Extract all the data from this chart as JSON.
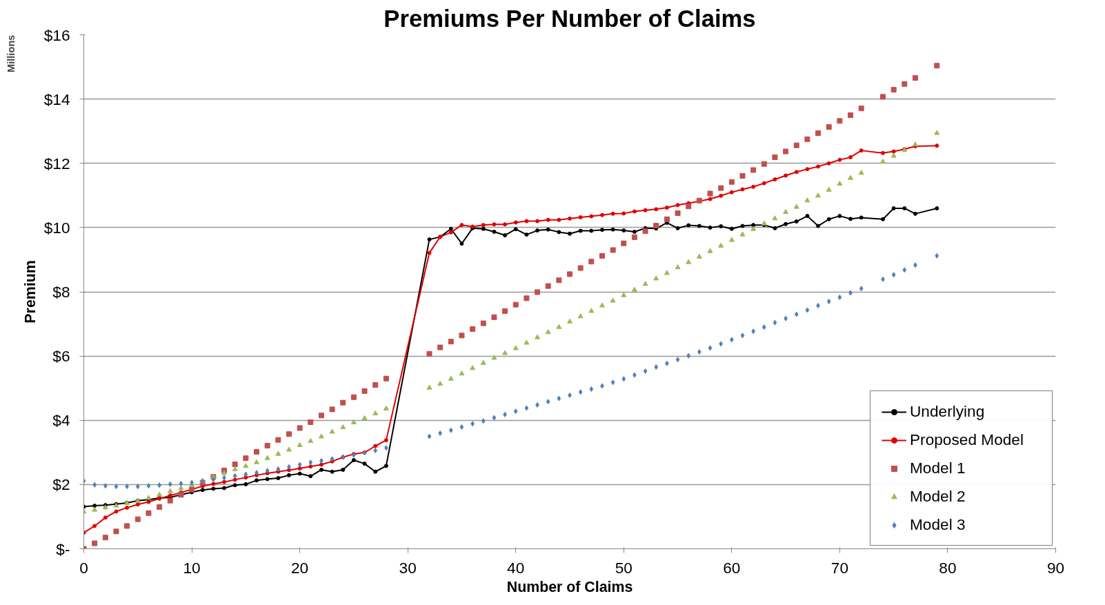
{
  "chart_data": {
    "type": "line",
    "title": "Premiums Per Number of Claims",
    "xlabel": "Number of Claims",
    "ylabel": "Premium",
    "annotations": [
      "Millions"
    ],
    "x": [
      0,
      1,
      2,
      3,
      4,
      5,
      6,
      7,
      8,
      9,
      10,
      11,
      12,
      13,
      14,
      15,
      16,
      17,
      18,
      19,
      20,
      21,
      22,
      23,
      24,
      25,
      26,
      27,
      28,
      32,
      33,
      34,
      35,
      36,
      37,
      38,
      39,
      40,
      41,
      42,
      43,
      44,
      45,
      46,
      47,
      48,
      49,
      50,
      51,
      52,
      53,
      54,
      55,
      56,
      57,
      58,
      59,
      60,
      61,
      62,
      63,
      64,
      65,
      66,
      67,
      68,
      69,
      70,
      71,
      72,
      74,
      75,
      76,
      77,
      79
    ],
    "xlim": [
      0,
      90
    ],
    "xticks": [
      0,
      10,
      20,
      30,
      40,
      50,
      60,
      70,
      80,
      90
    ],
    "ylim": [
      0,
      16
    ],
    "yticks": [
      {
        "value": 0,
        "label": "$-"
      },
      {
        "value": 2,
        "label": "$2"
      },
      {
        "value": 4,
        "label": "$4"
      },
      {
        "value": 6,
        "label": "$6"
      },
      {
        "value": 8,
        "label": "$8"
      },
      {
        "value": 10,
        "label": "$10"
      },
      {
        "value": 12,
        "label": "$12"
      },
      {
        "value": 14,
        "label": "$14"
      },
      {
        "value": 16,
        "label": "$16"
      }
    ],
    "grid": "y",
    "legend": "bottom right",
    "series": [
      {
        "name": "Underlying",
        "marker": "circle",
        "color": "#000000",
        "values": [
          1.31,
          1.34,
          1.36,
          1.39,
          1.43,
          1.5,
          1.53,
          1.58,
          1.6,
          1.68,
          1.76,
          1.83,
          1.87,
          1.89,
          1.98,
          2.01,
          2.13,
          2.17,
          2.2,
          2.29,
          2.34,
          2.26,
          2.46,
          2.4,
          2.46,
          2.76,
          2.65,
          2.4,
          2.58,
          9.63,
          9.71,
          9.96,
          9.5,
          9.98,
          9.96,
          9.87,
          9.76,
          9.95,
          9.78,
          9.91,
          9.94,
          9.86,
          9.81,
          9.9,
          9.9,
          9.93,
          9.94,
          9.91,
          9.87,
          9.98,
          9.97,
          10.15,
          9.98,
          10.07,
          10.05,
          10.0,
          10.04,
          9.96,
          10.05,
          10.08,
          10.08,
          9.98,
          10.11,
          10.19,
          10.36,
          10.05,
          10.26,
          10.36,
          10.27,
          10.31,
          10.26,
          10.6,
          10.6,
          10.43,
          10.6
        ]
      },
      {
        "name": "Proposed Model",
        "marker": "circle",
        "color": "#e00000",
        "values": [
          0.5,
          0.71,
          0.97,
          1.16,
          1.28,
          1.38,
          1.46,
          1.56,
          1.66,
          1.75,
          1.85,
          1.95,
          2.02,
          2.08,
          2.15,
          2.22,
          2.29,
          2.35,
          2.4,
          2.45,
          2.5,
          2.56,
          2.62,
          2.72,
          2.85,
          2.95,
          3.0,
          3.2,
          3.38,
          9.21,
          9.71,
          9.85,
          10.08,
          10.03,
          10.08,
          10.1,
          10.1,
          10.16,
          10.2,
          10.2,
          10.24,
          10.24,
          10.28,
          10.32,
          10.35,
          10.39,
          10.43,
          10.44,
          10.5,
          10.54,
          10.57,
          10.62,
          10.7,
          10.76,
          10.82,
          10.89,
          10.99,
          11.1,
          11.19,
          11.27,
          11.38,
          11.5,
          11.62,
          11.73,
          11.82,
          11.9,
          12.0,
          12.11,
          12.19,
          12.4,
          12.32,
          12.37,
          12.44,
          12.53,
          12.55
        ]
      },
      {
        "name": "Model 1",
        "type": "scatter",
        "marker": "square",
        "color": "#c0504d",
        "values": [
          0,
          0.17,
          0.35,
          0.54,
          0.71,
          0.92,
          1.11,
          1.3,
          1.5,
          1.68,
          1.84,
          2.06,
          2.24,
          2.44,
          2.63,
          2.82,
          3.02,
          3.21,
          3.39,
          3.57,
          3.76,
          3.94,
          4.15,
          4.34,
          4.55,
          4.72,
          4.91,
          5.1,
          5.3,
          6.07,
          6.27,
          6.45,
          6.64,
          6.84,
          7.02,
          7.21,
          7.4,
          7.6,
          7.8,
          7.99,
          8.18,
          8.36,
          8.55,
          8.74,
          8.94,
          9.12,
          9.3,
          9.51,
          9.7,
          9.89,
          10.06,
          10.26,
          10.45,
          10.66,
          10.84,
          11.06,
          11.23,
          11.42,
          11.61,
          11.79,
          11.98,
          12.19,
          12.37,
          12.56,
          12.75,
          12.94,
          13.13,
          13.32,
          13.5,
          13.71,
          14.07,
          14.29,
          14.47,
          14.66,
          15.04
        ]
      },
      {
        "name": "Model 2",
        "type": "scatter",
        "marker": "triangle",
        "color": "#9bbb59",
        "values": [
          1.15,
          1.21,
          1.28,
          1.34,
          1.42,
          1.49,
          1.58,
          1.68,
          1.79,
          1.88,
          1.98,
          2.11,
          2.23,
          2.35,
          2.47,
          2.57,
          2.69,
          2.82,
          2.95,
          3.08,
          3.22,
          3.35,
          3.49,
          3.64,
          3.78,
          3.93,
          4.06,
          4.21,
          4.36,
          5.01,
          5.13,
          5.29,
          5.45,
          5.62,
          5.78,
          5.94,
          6.09,
          6.24,
          6.41,
          6.58,
          6.74,
          6.9,
          7.07,
          7.23,
          7.4,
          7.57,
          7.72,
          7.89,
          8.06,
          8.24,
          8.41,
          8.58,
          8.76,
          8.92,
          9.09,
          9.26,
          9.43,
          9.61,
          9.78,
          9.95,
          10.12,
          10.28,
          10.48,
          10.64,
          10.84,
          10.99,
          11.17,
          11.36,
          11.54,
          11.7,
          12.05,
          12.23,
          12.41,
          12.58,
          12.94
        ]
      },
      {
        "name": "Model 3",
        "type": "scatter",
        "marker": "diamond",
        "color": "#4f81bd",
        "values": [
          2.11,
          1.99,
          1.96,
          1.94,
          1.94,
          1.94,
          1.96,
          1.98,
          2.01,
          2.03,
          2.06,
          2.1,
          2.16,
          2.21,
          2.27,
          2.32,
          2.37,
          2.43,
          2.48,
          2.55,
          2.62,
          2.69,
          2.74,
          2.8,
          2.86,
          2.92,
          2.99,
          3.06,
          3.14,
          3.5,
          3.6,
          3.69,
          3.79,
          3.89,
          3.98,
          4.08,
          4.18,
          4.28,
          4.38,
          4.48,
          4.58,
          4.68,
          4.78,
          4.88,
          4.97,
          5.07,
          5.18,
          5.29,
          5.41,
          5.53,
          5.66,
          5.77,
          5.89,
          6.01,
          6.13,
          6.25,
          6.38,
          6.51,
          6.64,
          6.77,
          6.9,
          7.04,
          7.17,
          7.3,
          7.43,
          7.57,
          7.7,
          7.83,
          7.97,
          8.1,
          8.39,
          8.53,
          8.68,
          8.83,
          9.12
        ]
      }
    ]
  }
}
